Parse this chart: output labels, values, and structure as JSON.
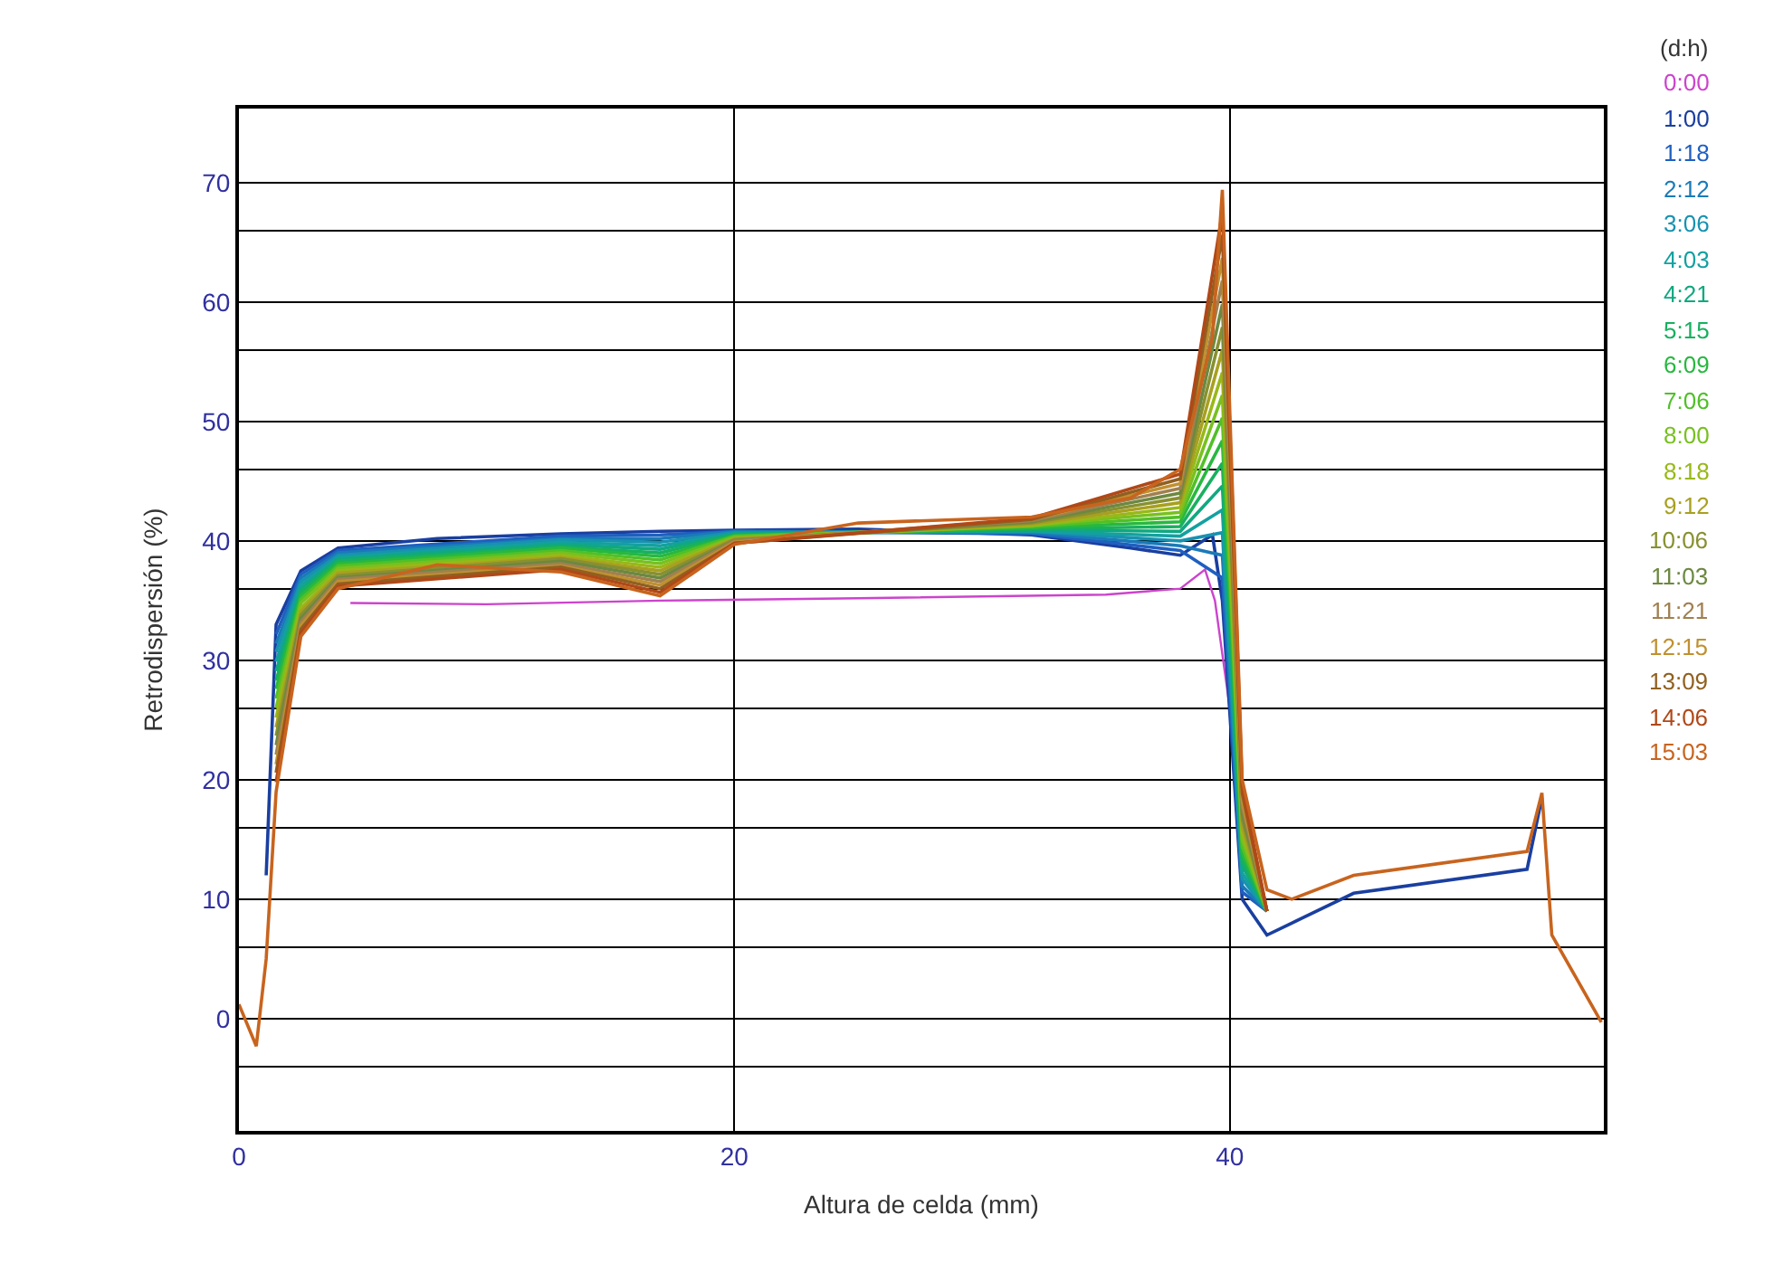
{
  "chart_data": {
    "type": "line",
    "xlabel": "Altura de celda (mm)",
    "ylabel": "Retrodispersión (%)",
    "legend_title": "(d:h)",
    "legend": "right",
    "grid": true,
    "marker": "none",
    "line_style": "solid",
    "xlim": [
      0,
      55.1
    ],
    "xticks": [
      0,
      20,
      40
    ],
    "ylim": [
      -9.4,
      76.2
    ],
    "yticks": [
      {
        "value": -4,
        "label": null
      },
      0,
      {
        "value": 6,
        "label": null
      },
      10,
      {
        "value": 16,
        "label": null
      },
      20,
      {
        "value": 26,
        "label": null
      },
      30,
      {
        "value": 36,
        "label": null
      },
      40,
      {
        "value": 46,
        "label": null
      },
      50,
      {
        "value": 56,
        "label": null
      },
      60,
      {
        "value": 66,
        "label": null
      },
      70
    ],
    "series": [
      {
        "name": "0:00",
        "color": "#cc44cc",
        "x": [
          4.5,
          10,
          17,
          25,
          35,
          38,
          39,
          39.4,
          40
        ],
        "values": [
          34.8,
          34.7,
          35,
          35.2,
          35.5,
          36,
          37.6,
          35,
          26
        ]
      },
      {
        "name": "1:00",
        "color": "#1a3fa0",
        "x": [
          1.1,
          1.5,
          2.5,
          4,
          8,
          13,
          17,
          20,
          25,
          32,
          36,
          38,
          39.3,
          39.7,
          40.5,
          41.5,
          42.5,
          45,
          52,
          52.6
        ],
        "values": [
          12,
          33,
          37.5,
          39.4,
          40.2,
          40.6,
          40.8,
          40.9,
          41,
          40.5,
          39.4,
          38.8,
          40.5,
          35,
          10,
          7,
          8,
          10.5,
          12.5,
          18.5
        ]
      },
      {
        "name": "1:18",
        "color": "#1f5fc0",
        "x": [
          1.5,
          2.5,
          4,
          13,
          17,
          20,
          32,
          38,
          39.7,
          40.5,
          41.5
        ],
        "values": [
          32.2,
          37.2,
          39.2,
          40.4,
          40.5,
          40.8,
          40.6,
          39.2,
          36.9,
          10.6,
          9
        ]
      },
      {
        "name": "2:12",
        "color": "#1a7ab8",
        "x": [
          1.5,
          2.5,
          4,
          13,
          17,
          20,
          32,
          38,
          39.7,
          40.5,
          41.5
        ],
        "values": [
          31.4,
          36.9,
          39,
          40.2,
          40.2,
          40.8,
          40.7,
          39.6,
          38.8,
          11.1,
          9
        ]
      },
      {
        "name": "3:06",
        "color": "#1892b0",
        "x": [
          1.5,
          2.5,
          4,
          13,
          17,
          20,
          32,
          38,
          39.7,
          40.5,
          41.5
        ],
        "values": [
          30.7,
          36.6,
          38.8,
          40.1,
          39.9,
          40.7,
          40.8,
          40,
          40.7,
          11.7,
          9
        ]
      },
      {
        "name": "4:03",
        "color": "#14a0a0",
        "x": [
          1.5,
          2.5,
          4,
          13,
          17,
          20,
          32,
          38,
          39.7,
          40.5,
          41.5
        ],
        "values": [
          29.9,
          36.3,
          38.6,
          39.9,
          39.6,
          40.6,
          40.8,
          40.4,
          42.6,
          12.2,
          9
        ]
      },
      {
        "name": "4:21",
        "color": "#10a880",
        "x": [
          1.5,
          2.5,
          4,
          13,
          17,
          20,
          32,
          38,
          39.7,
          40.5,
          41.5
        ],
        "values": [
          29.1,
          36,
          38.5,
          39.7,
          39.3,
          40.6,
          40.9,
          40.8,
          44.6,
          12.8,
          9
        ]
      },
      {
        "name": "5:15",
        "color": "#18b060",
        "x": [
          1.5,
          2.5,
          4,
          13,
          17,
          20,
          32,
          38,
          39.7,
          40.5,
          41.5
        ],
        "values": [
          28.3,
          35.7,
          38.3,
          39.5,
          39,
          40.5,
          41,
          41.2,
          46.5,
          13.3,
          9
        ]
      },
      {
        "name": "6:09",
        "color": "#28b840",
        "x": [
          1.5,
          2.5,
          4,
          13,
          17,
          20,
          32,
          38,
          39.7,
          40.5,
          41.5
        ],
        "values": [
          27.6,
          35.4,
          38.1,
          39.4,
          38.7,
          40.4,
          41.1,
          41.6,
          48.4,
          13.9,
          9
        ]
      },
      {
        "name": "7:06",
        "color": "#50c028",
        "x": [
          1.5,
          2.5,
          4,
          13,
          17,
          20,
          32,
          38,
          39.7,
          40.5,
          41.5
        ],
        "values": [
          26.8,
          35.1,
          37.9,
          39.2,
          38.4,
          40.4,
          41.2,
          42,
          50.3,
          14.4,
          9
        ]
      },
      {
        "name": "8:00",
        "color": "#78c020",
        "x": [
          1.5,
          2.5,
          4,
          13,
          17,
          20,
          32,
          38,
          39.7,
          40.5,
          41.5
        ],
        "values": [
          26,
          34.8,
          37.7,
          39,
          38.1,
          40.3,
          41.3,
          42.4,
          52.2,
          15,
          9
        ]
      },
      {
        "name": "8:18",
        "color": "#98b818",
        "x": [
          1.5,
          2.5,
          4,
          13,
          17,
          20,
          32,
          38,
          39.7,
          40.5,
          41.5
        ],
        "values": [
          25.2,
          34.4,
          37.5,
          38.8,
          37.8,
          40.2,
          41.3,
          42.8,
          54.1,
          15.6,
          9
        ]
      },
      {
        "name": "9:12",
        "color": "#a8a020",
        "x": [
          1.5,
          2.5,
          4,
          13,
          17,
          20,
          32,
          38,
          39.7,
          40.5,
          41.5
        ],
        "values": [
          24.4,
          34.1,
          37.3,
          38.6,
          37.5,
          40.2,
          41.4,
          43.2,
          56,
          16.1,
          9
        ]
      },
      {
        "name": "10:06",
        "color": "#889030",
        "x": [
          1.5,
          2.5,
          4,
          13,
          17,
          20,
          32,
          38,
          39.7,
          40.5,
          41.5
        ],
        "values": [
          23.7,
          33.8,
          37.1,
          38.5,
          37.2,
          40.1,
          41.5,
          43.6,
          57.9,
          16.7,
          9
        ]
      },
      {
        "name": "11:03",
        "color": "#6c8840",
        "x": [
          1.5,
          2.5,
          4,
          13,
          17,
          20,
          32,
          38,
          39.7,
          40.5,
          41.5
        ],
        "values": [
          22.9,
          33.5,
          36.9,
          38.3,
          36.9,
          40,
          41.6,
          44,
          59.8,
          17.2,
          9
        ]
      },
      {
        "name": "11:21",
        "color": "#a08050",
        "x": [
          1.5,
          2.5,
          4,
          13,
          17,
          20,
          32,
          38,
          39.7,
          40.5,
          41.5
        ],
        "values": [
          22.1,
          33.2,
          36.8,
          38.1,
          36.6,
          40,
          41.7,
          44.4,
          61.8,
          17.8,
          9
        ]
      },
      {
        "name": "12:15",
        "color": "#c09030",
        "x": [
          1.5,
          2.5,
          4,
          13,
          17,
          20,
          32,
          38,
          39.7,
          40.5,
          41.5
        ],
        "values": [
          21.3,
          32.9,
          36.6,
          37.9,
          36.3,
          39.9,
          41.8,
          44.8,
          63.7,
          18.3,
          9
        ]
      },
      {
        "name": "13:09",
        "color": "#906020",
        "x": [
          1.5,
          2.5,
          4,
          13,
          17,
          20,
          32,
          38,
          39.7,
          40.5,
          41.5
        ],
        "values": [
          20.6,
          32.6,
          36.4,
          37.8,
          36,
          39.8,
          41.8,
          45.2,
          65.6,
          18.9,
          9
        ]
      },
      {
        "name": "14:06",
        "color": "#b04818",
        "x": [
          1.5,
          2.5,
          4,
          13,
          17,
          20,
          32,
          38,
          39.7,
          40.5,
          41.5
        ],
        "values": [
          19.8,
          32.3,
          36.2,
          37.6,
          35.7,
          39.8,
          41.9,
          45.6,
          67.5,
          19.4,
          9
        ]
      },
      {
        "name": "15:03",
        "color": "#c8641e",
        "x": [
          0,
          0.7,
          1.1,
          1.5,
          2.5,
          4,
          8,
          13,
          17,
          20,
          25,
          32,
          36,
          38,
          39.3,
          39.7,
          40.5,
          41.5,
          42.5,
          45,
          52,
          52.6,
          53,
          55
        ],
        "values": [
          1.2,
          -2.3,
          5,
          19,
          32,
          36,
          38,
          37.4,
          35.4,
          39.7,
          41.5,
          42,
          43.6,
          46,
          57,
          69.4,
          20,
          10.8,
          10,
          12,
          14,
          18.9,
          7,
          -0.3
        ]
      }
    ]
  }
}
